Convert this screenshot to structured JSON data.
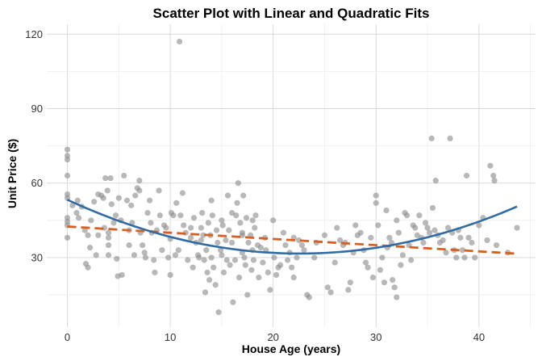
{
  "chart_data": {
    "type": "scatter",
    "title": "Scatter Plot with Linear and Quadratic Fits",
    "xlabel": "House Age (years)",
    "ylabel": "Unit Price ($)",
    "xlim": [
      -2,
      45.5
    ],
    "ylim": [
      2,
      124
    ],
    "x_ticks": [
      0,
      10,
      20,
      30,
      40
    ],
    "y_ticks": [
      30,
      60,
      90,
      120
    ],
    "grid": true,
    "colors": {
      "points": "#8c8c8c",
      "linear_fit": "#d95f1e",
      "quadratic_fit": "#2f6ca6"
    },
    "fits": {
      "linear": {
        "style": "dashed",
        "coefficients": {
          "intercept": 42.5,
          "slope": -0.25
        }
      },
      "quadratic": {
        "style": "solid",
        "coefficients": {
          "a": 0.0425,
          "b": -1.92,
          "c": 53.3
        }
      }
    },
    "points": [
      [
        0,
        73.5
      ],
      [
        0,
        71
      ],
      [
        0,
        69.5
      ],
      [
        0,
        63
      ],
      [
        0,
        55.5
      ],
      [
        0,
        54
      ],
      [
        0,
        46
      ],
      [
        0,
        44.5
      ],
      [
        0,
        43
      ],
      [
        0,
        38
      ],
      [
        0.5,
        51
      ],
      [
        0.9,
        48
      ],
      [
        1,
        53
      ],
      [
        1.1,
        46
      ],
      [
        1.4,
        50.5
      ],
      [
        1.7,
        41
      ],
      [
        1.8,
        27.5
      ],
      [
        2,
        26
      ],
      [
        2,
        39
      ],
      [
        2.2,
        34
      ],
      [
        2.3,
        45
      ],
      [
        2.6,
        52.5
      ],
      [
        2.8,
        31
      ],
      [
        3,
        55.5
      ],
      [
        3,
        39
      ],
      [
        3.3,
        55
      ],
      [
        3.5,
        54
      ],
      [
        3.6,
        42
      ],
      [
        3.7,
        62
      ],
      [
        3.9,
        57
      ],
      [
        4,
        40
      ],
      [
        4,
        38
      ],
      [
        4,
        35
      ],
      [
        4,
        31
      ],
      [
        4.2,
        62
      ],
      [
        4.3,
        51.5
      ],
      [
        4.5,
        44
      ],
      [
        4.7,
        47
      ],
      [
        4.8,
        29.5
      ],
      [
        4.9,
        22.5
      ],
      [
        5,
        54
      ],
      [
        5.2,
        45
      ],
      [
        5.3,
        23
      ],
      [
        5.5,
        63
      ],
      [
        5.8,
        53
      ],
      [
        6,
        35
      ],
      [
        6,
        41
      ],
      [
        6.2,
        51
      ],
      [
        6.3,
        44
      ],
      [
        6.5,
        31
      ],
      [
        6.6,
        55
      ],
      [
        6.8,
        58
      ],
      [
        7,
        57
      ],
      [
        7,
        61
      ],
      [
        7.1,
        40
      ],
      [
        7.3,
        35
      ],
      [
        7.5,
        32
      ],
      [
        7.6,
        30
      ],
      [
        7.8,
        48
      ],
      [
        8,
        53
      ],
      [
        8.1,
        44
      ],
      [
        8.2,
        40
      ],
      [
        8.4,
        29
      ],
      [
        8.5,
        24
      ],
      [
        8.7,
        41
      ],
      [
        8.9,
        57
      ],
      [
        9,
        47
      ],
      [
        9.2,
        33
      ],
      [
        9.4,
        43
      ],
      [
        9.6,
        42
      ],
      [
        9.8,
        30
      ],
      [
        10,
        23
      ],
      [
        10,
        37.5
      ],
      [
        10.1,
        48
      ],
      [
        10.3,
        47
      ],
      [
        10.5,
        31
      ],
      [
        10.6,
        52
      ],
      [
        10.8,
        33
      ],
      [
        10.9,
        117
      ],
      [
        11,
        47
      ],
      [
        11.2,
        56
      ],
      [
        11.3,
        43
      ],
      [
        11.5,
        40
      ],
      [
        11.7,
        29
      ],
      [
        12,
        42
      ],
      [
        12,
        38
      ],
      [
        12.2,
        26
      ],
      [
        12.3,
        46
      ],
      [
        12.5,
        36
      ],
      [
        12.7,
        31
      ],
      [
        12.8,
        30
      ],
      [
        13,
        42
      ],
      [
        13,
        37
      ],
      [
        13.1,
        48
      ],
      [
        13.2,
        39
      ],
      [
        13.3,
        29
      ],
      [
        13.4,
        16
      ],
      [
        13.5,
        33
      ],
      [
        13.6,
        24
      ],
      [
        13.7,
        44
      ],
      [
        13.8,
        21
      ],
      [
        13.9,
        39
      ],
      [
        14,
        30
      ],
      [
        14,
        53
      ],
      [
        14.1,
        47
      ],
      [
        14.2,
        26
      ],
      [
        14.4,
        19
      ],
      [
        14.5,
        41
      ],
      [
        14.6,
        36
      ],
      [
        14.7,
        8
      ],
      [
        14.9,
        33
      ],
      [
        15,
        31
      ],
      [
        15,
        45
      ],
      [
        15.1,
        43
      ],
      [
        15.2,
        24
      ],
      [
        15.4,
        37
      ],
      [
        15.5,
        29
      ],
      [
        15.6,
        55
      ],
      [
        15.7,
        41
      ],
      [
        15.8,
        27
      ],
      [
        16,
        36
      ],
      [
        16,
        48
      ],
      [
        16.1,
        12
      ],
      [
        16.3,
        29
      ],
      [
        16.4,
        47
      ],
      [
        16.5,
        52
      ],
      [
        16.6,
        60
      ],
      [
        16.7,
        22
      ],
      [
        16.8,
        44
      ],
      [
        17,
        32
      ],
      [
        17,
        40
      ],
      [
        17,
        39
      ],
      [
        17.1,
        55
      ],
      [
        17.2,
        30
      ],
      [
        17.3,
        27
      ],
      [
        17.4,
        46
      ],
      [
        17.5,
        15
      ],
      [
        17.6,
        36
      ],
      [
        17.8,
        39
      ],
      [
        17.9,
        25
      ],
      [
        18,
        45
      ],
      [
        18,
        33
      ],
      [
        18.1,
        29
      ],
      [
        18.2,
        42
      ],
      [
        18.3,
        47
      ],
      [
        18.5,
        35
      ],
      [
        18.6,
        22
      ],
      [
        18.8,
        34
      ],
      [
        19,
        28
      ],
      [
        19.2,
        38
      ],
      [
        19.3,
        33
      ],
      [
        19.5,
        24
      ],
      [
        19.7,
        17
      ],
      [
        20,
        45
      ],
      [
        20.1,
        30
      ],
      [
        20.3,
        23
      ],
      [
        20.5,
        26
      ],
      [
        20.7,
        27
      ],
      [
        21,
        40
      ],
      [
        21.2,
        35
      ],
      [
        21.4,
        29
      ],
      [
        21.6,
        32
      ],
      [
        21.8,
        26
      ],
      [
        22,
        38
      ],
      [
        22,
        22
      ],
      [
        22.3,
        30
      ],
      [
        22.5,
        37
      ],
      [
        22.8,
        35
      ],
      [
        23,
        33
      ],
      [
        23.3,
        15
      ],
      [
        23.5,
        14
      ],
      [
        24,
        30
      ],
      [
        24.2,
        36
      ],
      [
        25,
        39
      ],
      [
        25.3,
        18
      ],
      [
        25.6,
        16
      ],
      [
        26,
        28
      ],
      [
        26.2,
        42
      ],
      [
        26.5,
        37
      ],
      [
        26.8,
        35
      ],
      [
        27,
        36
      ],
      [
        27.3,
        17
      ],
      [
        27.5,
        20
      ],
      [
        27.8,
        32
      ],
      [
        28,
        43
      ],
      [
        28.2,
        39
      ],
      [
        28.5,
        40
      ],
      [
        28.8,
        33
      ],
      [
        29,
        28
      ],
      [
        29.2,
        26
      ],
      [
        29.5,
        38
      ],
      [
        29.7,
        22
      ],
      [
        30,
        55
      ],
      [
        30,
        52
      ],
      [
        30.2,
        43
      ],
      [
        30.4,
        25
      ],
      [
        30.6,
        30
      ],
      [
        30.8,
        20
      ],
      [
        31,
        49
      ],
      [
        31.1,
        34
      ],
      [
        31.3,
        38
      ],
      [
        31.5,
        36
      ],
      [
        31.6,
        21
      ],
      [
        31.8,
        18
      ],
      [
        32,
        14
      ],
      [
        32,
        45
      ],
      [
        32.2,
        40
      ],
      [
        32.4,
        27
      ],
      [
        32.6,
        31
      ],
      [
        32.8,
        48
      ],
      [
        33,
        47
      ],
      [
        33.2,
        35
      ],
      [
        33.4,
        29
      ],
      [
        33.6,
        43
      ],
      [
        33.8,
        42
      ],
      [
        34,
        39
      ],
      [
        34.2,
        47
      ],
      [
        34.4,
        38
      ],
      [
        34.6,
        36
      ],
      [
        34.8,
        44
      ],
      [
        35,
        42
      ],
      [
        35.2,
        40
      ],
      [
        35.4,
        78
      ],
      [
        35.5,
        50
      ],
      [
        35.7,
        41
      ],
      [
        35.8,
        61
      ],
      [
        36,
        39
      ],
      [
        36.2,
        36
      ],
      [
        36.5,
        37
      ],
      [
        36.8,
        32
      ],
      [
        37,
        42
      ],
      [
        37.2,
        78
      ],
      [
        37.4,
        40
      ],
      [
        37.6,
        33
      ],
      [
        37.8,
        30
      ],
      [
        38,
        41
      ],
      [
        38.2,
        38
      ],
      [
        38.4,
        33
      ],
      [
        38.6,
        30
      ],
      [
        38.8,
        63
      ],
      [
        39,
        38
      ],
      [
        39.3,
        36
      ],
      [
        39.6,
        30
      ],
      [
        40,
        43
      ],
      [
        40.4,
        46
      ],
      [
        40.8,
        37
      ],
      [
        41.1,
        67
      ],
      [
        41.4,
        63
      ],
      [
        41.5,
        61
      ],
      [
        41.7,
        35
      ],
      [
        42.8,
        32
      ],
      [
        43.7,
        42
      ]
    ]
  }
}
